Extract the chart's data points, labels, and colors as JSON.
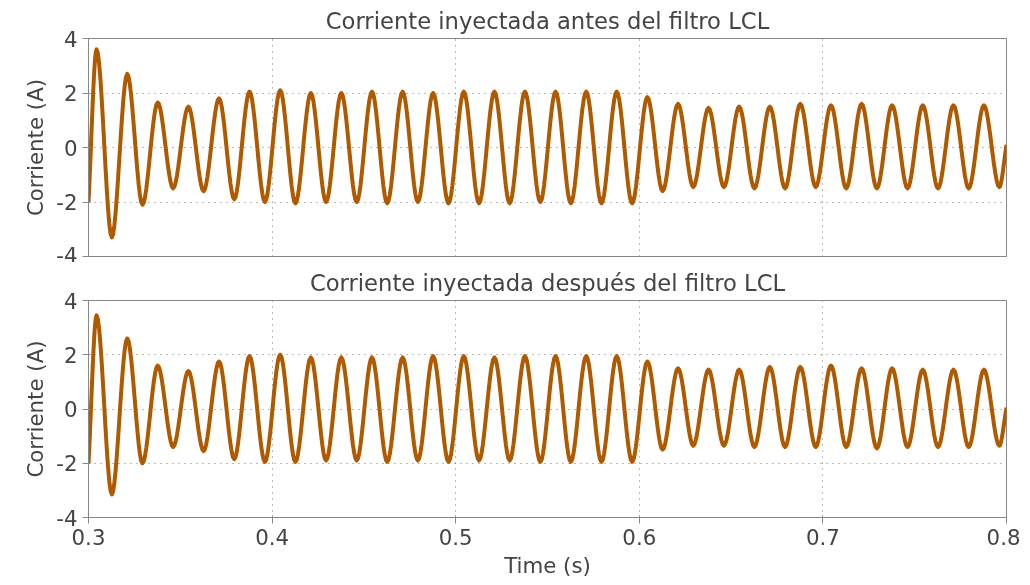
{
  "chart_data": [
    {
      "type": "line",
      "title": "Corriente inyectada antes del filtro LCL",
      "ylabel": "Corriente (A)",
      "xlim": [
        0.3,
        0.8
      ],
      "ylim": [
        -4,
        4
      ],
      "xticks": [
        0.3,
        0.4,
        0.5,
        0.6,
        0.7,
        0.8
      ],
      "yticks": [
        -4,
        -2,
        0,
        2,
        4
      ],
      "grid": true,
      "line_style": "solid",
      "marker": "none",
      "tick_labels": "y",
      "x": [
        0.3,
        0.3044,
        0.3127,
        0.3211,
        0.3294,
        0.3377,
        0.3461,
        0.3544,
        0.3627,
        0.3711,
        0.3794,
        0.3877,
        0.3961,
        0.4044,
        0.4127,
        0.4211,
        0.4294,
        0.4377,
        0.4461,
        0.4544,
        0.4627,
        0.4711,
        0.4794,
        0.4877,
        0.4961,
        0.5044,
        0.5127,
        0.5211,
        0.5294,
        0.5377,
        0.5461,
        0.5544,
        0.5627,
        0.5711,
        0.5794,
        0.5877,
        0.5961,
        0.6044,
        0.6127,
        0.6211,
        0.6294,
        0.6377,
        0.6461,
        0.6544,
        0.6627,
        0.6711,
        0.6794,
        0.6877,
        0.6961,
        0.7044,
        0.7127,
        0.7211,
        0.7294,
        0.7377,
        0.7461,
        0.7544,
        0.7627,
        0.7711,
        0.7794,
        0.7877,
        0.7961,
        0.8
      ],
      "series": [
        {
          "color": "#b05a00",
          "values": [
            -2.0,
            3.6,
            -3.3,
            2.7,
            -2.1,
            1.65,
            -1.5,
            1.5,
            -1.6,
            1.8,
            -1.9,
            2.05,
            -2.0,
            2.1,
            -2.05,
            2.0,
            -2.0,
            2.0,
            -2.0,
            2.05,
            -2.05,
            2.05,
            -2.0,
            2.0,
            -2.05,
            2.05,
            -2.05,
            2.05,
            -2.05,
            2.05,
            -2.0,
            2.05,
            -2.05,
            2.05,
            -2.05,
            2.05,
            -2.05,
            1.85,
            -1.6,
            1.6,
            -1.45,
            1.45,
            -1.45,
            1.5,
            -1.5,
            1.5,
            -1.5,
            1.6,
            -1.45,
            1.55,
            -1.5,
            1.6,
            -1.5,
            1.55,
            -1.5,
            1.55,
            -1.5,
            1.55,
            -1.5,
            1.55,
            -1.45,
            0.1
          ]
        }
      ]
    },
    {
      "type": "line",
      "title": "Corriente inyectada después del filtro LCL",
      "xlabel": "Time (s)",
      "ylabel": "Corriente (A)",
      "xlim": [
        0.3,
        0.8
      ],
      "ylim": [
        -4,
        4
      ],
      "xticks": [
        0.3,
        0.4,
        0.5,
        0.6,
        0.7,
        0.8
      ],
      "yticks": [
        -4,
        -2,
        0,
        2,
        4
      ],
      "grid": true,
      "line_style": "solid",
      "marker": "none",
      "x": [
        0.3,
        0.3044,
        0.3127,
        0.3211,
        0.3294,
        0.3377,
        0.3461,
        0.3544,
        0.3627,
        0.3711,
        0.3794,
        0.3877,
        0.3961,
        0.4044,
        0.4127,
        0.4211,
        0.4294,
        0.4377,
        0.4461,
        0.4544,
        0.4627,
        0.4711,
        0.4794,
        0.4877,
        0.4961,
        0.5044,
        0.5127,
        0.5211,
        0.5294,
        0.5377,
        0.5461,
        0.5544,
        0.5627,
        0.5711,
        0.5794,
        0.5877,
        0.5961,
        0.6044,
        0.6127,
        0.6211,
        0.6294,
        0.6377,
        0.6461,
        0.6544,
        0.6627,
        0.6711,
        0.6794,
        0.6877,
        0.6961,
        0.7044,
        0.7127,
        0.7211,
        0.7294,
        0.7377,
        0.7461,
        0.7544,
        0.7627,
        0.7711,
        0.7794,
        0.7877,
        0.7961,
        0.8
      ],
      "series": [
        {
          "color": "#b05a00",
          "values": [
            -2.0,
            3.45,
            -3.15,
            2.6,
            -2.0,
            1.6,
            -1.4,
            1.4,
            -1.55,
            1.75,
            -1.85,
            1.95,
            -1.95,
            2.0,
            -1.95,
            1.9,
            -1.9,
            1.9,
            -1.9,
            1.9,
            -1.95,
            1.9,
            -1.9,
            1.95,
            -1.95,
            1.95,
            -1.9,
            1.9,
            -1.9,
            1.95,
            -1.95,
            1.95,
            -1.95,
            1.95,
            -1.95,
            1.95,
            -1.95,
            1.75,
            -1.5,
            1.5,
            -1.35,
            1.45,
            -1.35,
            1.45,
            -1.4,
            1.55,
            -1.4,
            1.55,
            -1.4,
            1.6,
            -1.4,
            1.5,
            -1.45,
            1.5,
            -1.4,
            1.45,
            -1.4,
            1.45,
            -1.4,
            1.45,
            -1.35,
            0.05
          ]
        }
      ]
    }
  ]
}
